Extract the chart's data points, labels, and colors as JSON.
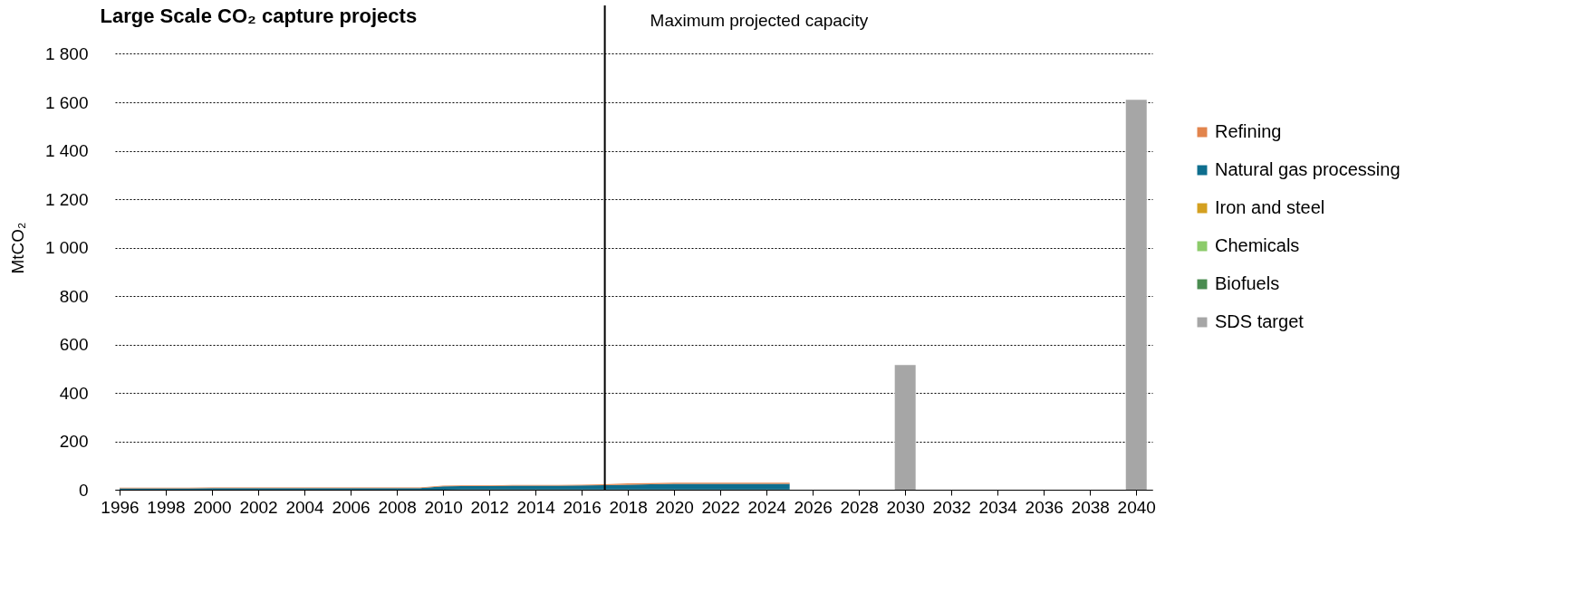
{
  "chart_data": {
    "type": "area",
    "title": "Large Scale CO₂ capture projects",
    "ylabel": "MtCO₂",
    "stacked": true,
    "x": [
      1996,
      1997,
      1998,
      1999,
      2000,
      2001,
      2002,
      2003,
      2004,
      2005,
      2006,
      2007,
      2008,
      2009,
      2010,
      2011,
      2012,
      2013,
      2014,
      2015,
      2016,
      2017,
      2018,
      2019,
      2020,
      2021,
      2022,
      2023,
      2024,
      2025
    ],
    "series": [
      {
        "name": "Biofuels",
        "color": "#4a8c50",
        "values": [
          0,
          0,
          0,
          0,
          0,
          0,
          0,
          0,
          0,
          0,
          0,
          0,
          0,
          0,
          0,
          1,
          1,
          1,
          1,
          1,
          1,
          1,
          1,
          1,
          1,
          1,
          1,
          1,
          1,
          1
        ]
      },
      {
        "name": "Chemicals",
        "color": "#8ccb6a",
        "values": [
          null,
          null,
          null,
          null,
          null,
          null,
          null,
          null,
          null,
          null,
          null,
          null,
          null,
          null,
          null,
          null,
          null,
          null,
          null,
          null,
          null,
          null,
          null,
          null,
          null,
          null,
          null,
          null,
          null,
          null
        ]
      },
      {
        "name": "Iron and steel",
        "color": "#d4a020",
        "values": [
          null,
          null,
          null,
          null,
          null,
          null,
          null,
          null,
          null,
          null,
          null,
          null,
          null,
          null,
          null,
          null,
          null,
          null,
          null,
          null,
          null,
          null,
          null,
          null,
          null,
          null,
          null,
          null,
          null,
          null
        ]
      },
      {
        "name": "Natural gas processing",
        "color": "#0e6e8e",
        "values": [
          6,
          6,
          6,
          6,
          7,
          7,
          7,
          7,
          7,
          7,
          7,
          7,
          7,
          7,
          14,
          14,
          14,
          16,
          16,
          16,
          17,
          18,
          20,
          21,
          23,
          23,
          23,
          23,
          23,
          23
        ]
      },
      {
        "name": "Refining",
        "color": "#e2844c",
        "values": [
          2,
          2,
          2,
          2,
          2,
          2,
          2,
          2,
          2,
          2,
          2,
          2,
          2,
          2,
          3,
          3,
          3,
          3,
          3,
          3,
          3,
          3,
          5,
          5,
          5,
          5,
          5,
          5,
          5,
          5
        ]
      },
      {
        "name": "SDS target",
        "type": "bar",
        "color": "#a6a6a6",
        "x": [
          2030,
          2040
        ],
        "values": [
          515,
          1610
        ]
      }
    ],
    "xlim": [
      1996,
      2040.5
    ],
    "xticks": [
      1996,
      1998,
      2000,
      2002,
      2004,
      2006,
      2008,
      2010,
      2012,
      2014,
      2016,
      2018,
      2020,
      2022,
      2024,
      2026,
      2028,
      2030,
      2032,
      2034,
      2036,
      2038,
      2040
    ],
    "ylim": [
      0,
      2000
    ],
    "yticks": [
      0,
      200,
      400,
      600,
      800,
      {
        "value": 1000,
        "label": "1 000"
      },
      {
        "value": 1200,
        "label": "1 200"
      },
      {
        "value": 1400,
        "label": "1 400"
      },
      {
        "value": 1600,
        "label": "1 600"
      },
      {
        "value": 1800,
        "label": "1 800"
      }
    ],
    "grid": "y",
    "legend": "right",
    "ref_lines": [
      {
        "axis": "x",
        "value": 2017,
        "label": "Maximum projected capacity",
        "color": "#000000"
      }
    ]
  }
}
